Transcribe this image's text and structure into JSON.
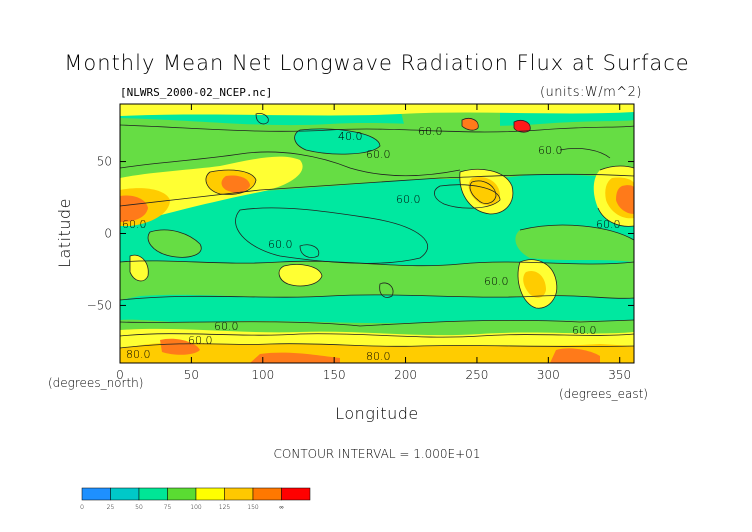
{
  "chart_data": {
    "type": "heatmap",
    "title": "Monthly Mean Net Longwave Radiation Flux at Surface",
    "file_label": "[NLWRS_2000-02_NCEP.nc]",
    "units_label": "(units:W/m^2)",
    "xlabel": "Longitude",
    "ylabel": "Latitude",
    "x_unit_label": "(degrees_east)",
    "y_unit_label": "(degrees_north)",
    "xlim": [
      0,
      360
    ],
    "ylim": [
      -90,
      90
    ],
    "x_ticks": [
      "0",
      "50",
      "100",
      "150",
      "200",
      "250",
      "300",
      "350"
    ],
    "y_ticks": [
      "50",
      "0",
      "−50"
    ],
    "contour_interval_text": "CONTOUR INTERVAL = 1.000E+01",
    "contour_labels": [
      "60.0",
      "40.0",
      "60.0",
      "60.0",
      "60.0",
      "60.0",
      "60.0",
      "60.0",
      "60.0",
      "60.0",
      "60.0",
      "80.0",
      "80.0",
      "60.0"
    ],
    "colorbar": {
      "bounds": [
        "0",
        "25",
        "50",
        "75",
        "100",
        "125",
        "150",
        "∞"
      ],
      "colors": [
        "#1e90ff",
        "#00c8c8",
        "#00e696",
        "#5adc32",
        "#ffff00",
        "#ffc800",
        "#ff7800",
        "#ff0000"
      ]
    },
    "field_colors": {
      "c1": "#00e8a0",
      "c2": "#66dd44",
      "c3": "#ffff33",
      "c4": "#ffcc00",
      "c5": "#ff7a1a",
      "c6": "#ff1a1a"
    }
  }
}
